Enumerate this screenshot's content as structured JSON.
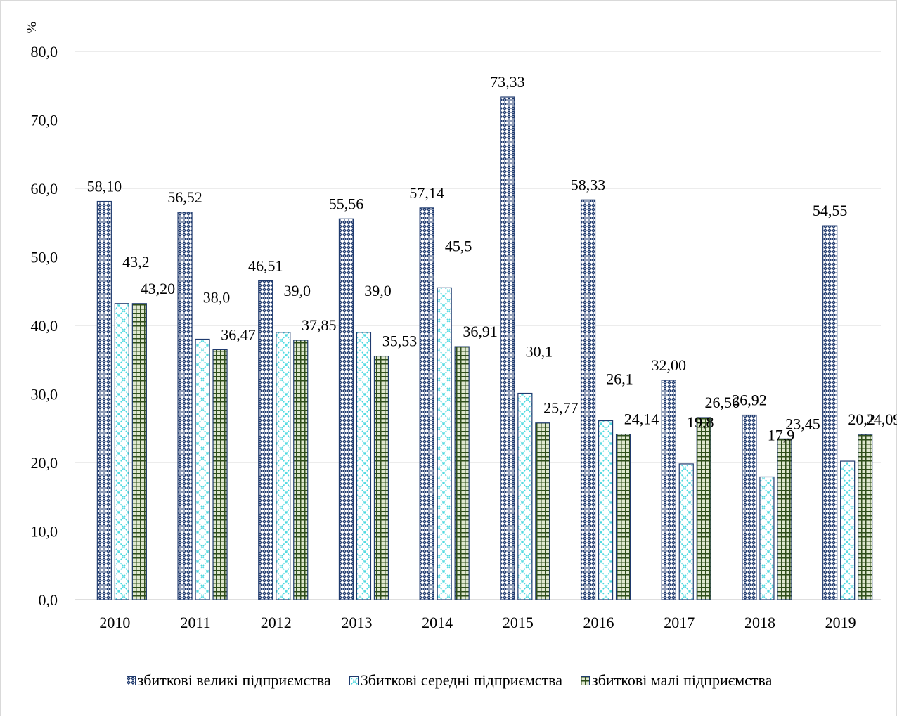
{
  "chart_data": {
    "type": "bar",
    "ylabel": "%",
    "ylim": [
      0,
      80
    ],
    "yticks": [
      "0,0",
      "10,0",
      "20,0",
      "30,0",
      "40,0",
      "50,0",
      "60,0",
      "70,0",
      "80,0"
    ],
    "grid": true,
    "legend_position": "bottom",
    "categories": [
      "2010",
      "2011",
      "2012",
      "2013",
      "2014",
      "2015",
      "2016",
      "2017",
      "2018",
      "2019"
    ],
    "series": [
      {
        "name": "збиткові великі підприємства",
        "values": [
          58.1,
          56.52,
          46.51,
          55.56,
          57.14,
          73.33,
          58.33,
          32.0,
          26.92,
          54.55
        ],
        "labels": [
          "58,10",
          "56,52",
          "46,51",
          "55,56",
          "57,14",
          "73,33",
          "58,33",
          "32,00",
          "26,92",
          "54,55"
        ],
        "color": "#1f3a6e",
        "pattern": "dotted-diamond"
      },
      {
        "name": "Збиткові середні підприємства",
        "values": [
          43.2,
          38.0,
          39.0,
          39.0,
          45.5,
          30.1,
          26.1,
          19.8,
          17.9,
          20.2
        ],
        "labels": [
          "43,2",
          "38,0",
          "39,0",
          "39,0",
          "45,5",
          "30,1",
          "26,1",
          "19,8",
          "17,9",
          "20,2"
        ],
        "color": "#4dd9e0",
        "pattern": "light-cross"
      },
      {
        "name": "збиткові малі підприємства",
        "values": [
          43.2,
          36.47,
          37.85,
          35.53,
          36.91,
          25.77,
          24.14,
          26.56,
          23.45,
          24.09
        ],
        "labels": [
          "43,20",
          "36,47",
          "37,85",
          "35,53",
          "36,91",
          "25,77",
          "24,14",
          "26,56",
          "23,45",
          "24,09"
        ],
        "color": "#2e4d1a",
        "pattern": "grid"
      }
    ]
  },
  "legend": {
    "items": [
      "збиткові великі підприємства",
      "Збиткові середні підприємства",
      "збиткові малі підприємства"
    ]
  }
}
